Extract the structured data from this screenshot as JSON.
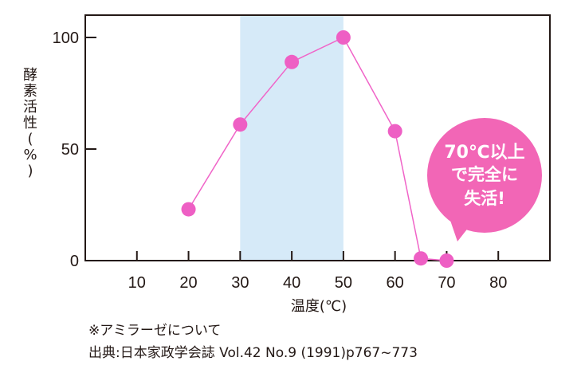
{
  "chart_data": {
    "type": "line",
    "ylabel": "酵素活性(%)",
    "xlabel": "温度(℃)",
    "x_ticks": [
      10,
      20,
      30,
      40,
      50,
      60,
      70,
      80
    ],
    "y_ticks": [
      0,
      50,
      100
    ],
    "xlim": [
      0,
      90
    ],
    "ylim": [
      0,
      110
    ],
    "grid": false,
    "highlight_range": [
      30,
      50
    ],
    "series": [
      {
        "x": [
          20,
          30,
          40,
          50,
          60,
          65,
          70
        ],
        "y": [
          23,
          61,
          89,
          100,
          58,
          1,
          0
        ]
      }
    ],
    "callout": {
      "lines": [
        "70℃以上",
        "で完全に",
        "失活!"
      ]
    }
  },
  "colors": {
    "line": "#f064c8",
    "marker": "#ee5fc4",
    "highlight": "#d6eaf8",
    "callout_fill": "#f266b6",
    "axis": "#231815"
  },
  "notes": {
    "line1": "※アミラーゼについて",
    "line2": "出典:日本家政学会誌 Vol.42 No.9 (1991)p767~773"
  }
}
